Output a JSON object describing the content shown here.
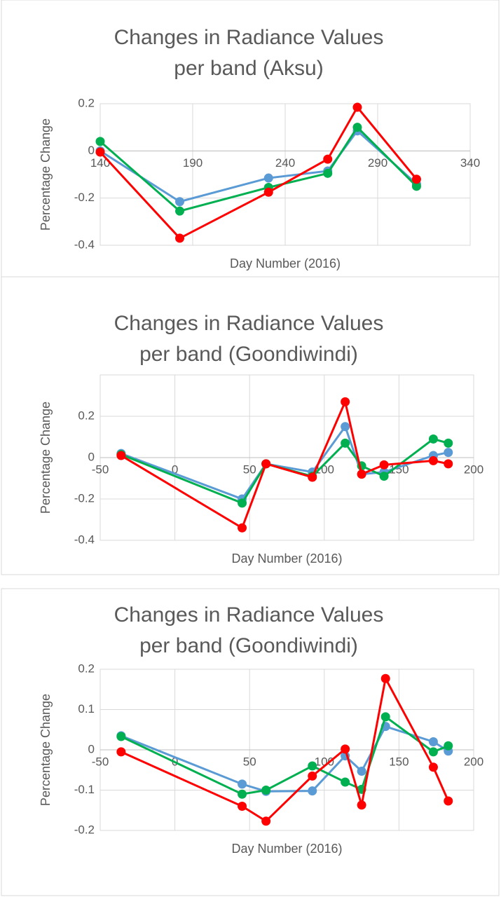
{
  "chart_data": [
    {
      "type": "line",
      "title": "Changes in Radiance Values per band (Aksu)",
      "x_label": "Day Number (2016)",
      "y_label": "Percentage Change",
      "x": [
        140,
        183,
        231,
        263,
        279,
        311
      ],
      "xlim": [
        140,
        340
      ],
      "xticks": [
        140,
        190,
        240,
        290,
        340
      ],
      "ylim": [
        -0.4,
        0.2
      ],
      "yticks": [
        -0.4,
        -0.2,
        0,
        0.2
      ],
      "grid": true,
      "series": [
        {
          "color": "#5b9bd5",
          "values": [
            0.0,
            -0.215,
            -0.115,
            -0.085,
            0.085,
            -0.14
          ]
        },
        {
          "color": "#00b050",
          "values": [
            0.04,
            -0.255,
            -0.155,
            -0.095,
            0.1,
            -0.15
          ]
        },
        {
          "color": "#ff0000",
          "values": [
            -0.005,
            -0.37,
            -0.175,
            -0.035,
            0.185,
            -0.12
          ]
        }
      ]
    },
    {
      "type": "line",
      "title": "Changes in Radiance Values per band (Goondiwindi)",
      "x_label": "Day Number (2016)",
      "y_label": "Percentage Change",
      "x": [
        -36,
        45,
        61,
        92,
        114,
        125,
        140,
        173,
        183
      ],
      "xlim": [
        -50,
        200
      ],
      "xticks": [
        -50,
        0,
        50,
        100,
        150,
        200
      ],
      "ylim": [
        -0.4,
        0.4
      ],
      "yticks": [
        -0.4,
        -0.2,
        0,
        0.2
      ],
      "grid": true,
      "series": [
        {
          "color": "#5b9bd5",
          "values": [
            0.02,
            -0.2,
            -0.03,
            -0.07,
            0.15,
            -0.08,
            -0.07,
            0.01,
            0.025
          ]
        },
        {
          "color": "#00b050",
          "values": [
            0.015,
            -0.22,
            -0.03,
            -0.09,
            0.07,
            -0.04,
            -0.09,
            0.09,
            0.07
          ]
        },
        {
          "color": "#ff0000",
          "values": [
            0.01,
            -0.34,
            -0.03,
            -0.095,
            0.27,
            -0.08,
            -0.035,
            -0.015,
            -0.03
          ]
        }
      ]
    },
    {
      "type": "line",
      "title": "Changes in Radiance Values per band (Goondiwindi)",
      "x_label": "Day Number (2016)",
      "y_label": "Percentage Change",
      "x": [
        -36,
        45,
        61,
        92,
        114,
        125,
        141,
        173,
        183
      ],
      "xlim": [
        -50,
        200
      ],
      "xticks": [
        -50,
        0,
        50,
        100,
        150,
        200
      ],
      "ylim": [
        -0.2,
        0.2
      ],
      "yticks": [
        -0.2,
        -0.1,
        0,
        0.1,
        0.2
      ],
      "grid": true,
      "series": [
        {
          "color": "#5b9bd5",
          "values": [
            0.035,
            -0.085,
            -0.103,
            -0.102,
            -0.015,
            -0.053,
            0.058,
            0.02,
            -0.003
          ]
        },
        {
          "color": "#00b050",
          "values": [
            0.033,
            -0.11,
            -0.1,
            -0.04,
            -0.08,
            -0.098,
            0.082,
            -0.005,
            0.01
          ]
        },
        {
          "color": "#ff0000",
          "values": [
            -0.005,
            -0.14,
            -0.177,
            -0.065,
            0.002,
            -0.137,
            0.177,
            -0.043,
            -0.127
          ]
        }
      ]
    }
  ]
}
